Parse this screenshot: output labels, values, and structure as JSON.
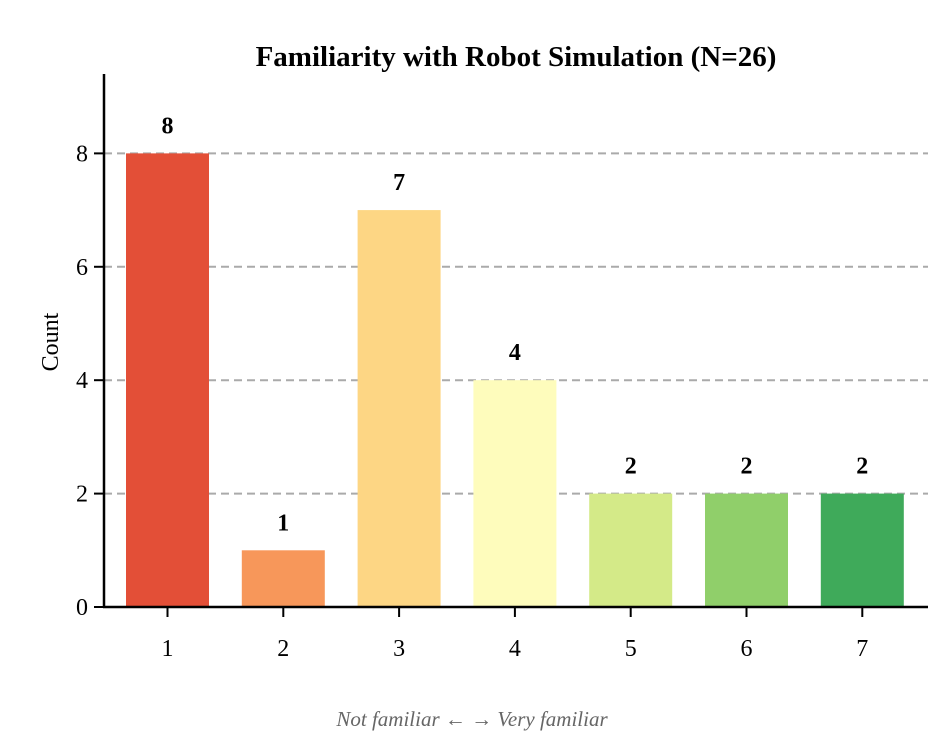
{
  "chart_data": {
    "type": "bar",
    "title": "Familiarity with Robot Simulation (N=26)",
    "xlabel": "",
    "ylabel": "Count",
    "categories": [
      "1",
      "2",
      "3",
      "4",
      "5",
      "6",
      "7"
    ],
    "values": [
      8,
      1,
      7,
      4,
      2,
      2,
      2
    ],
    "data_labels": [
      "8",
      "1",
      "7",
      "4",
      "2",
      "2",
      "2"
    ],
    "colors": [
      "#e34f37",
      "#f7975a",
      "#fdd684",
      "#fefcbc",
      "#d4ea88",
      "#90cf6a",
      "#3faa5a"
    ],
    "ylim": [
      0,
      9.4
    ],
    "yticks": [
      0,
      2,
      4,
      6,
      8
    ],
    "ytick_labels": [
      "0",
      "2",
      "4",
      "6",
      "8"
    ],
    "grid": "y-dashed",
    "caption": "Not familiar ← → Very familiar"
  }
}
